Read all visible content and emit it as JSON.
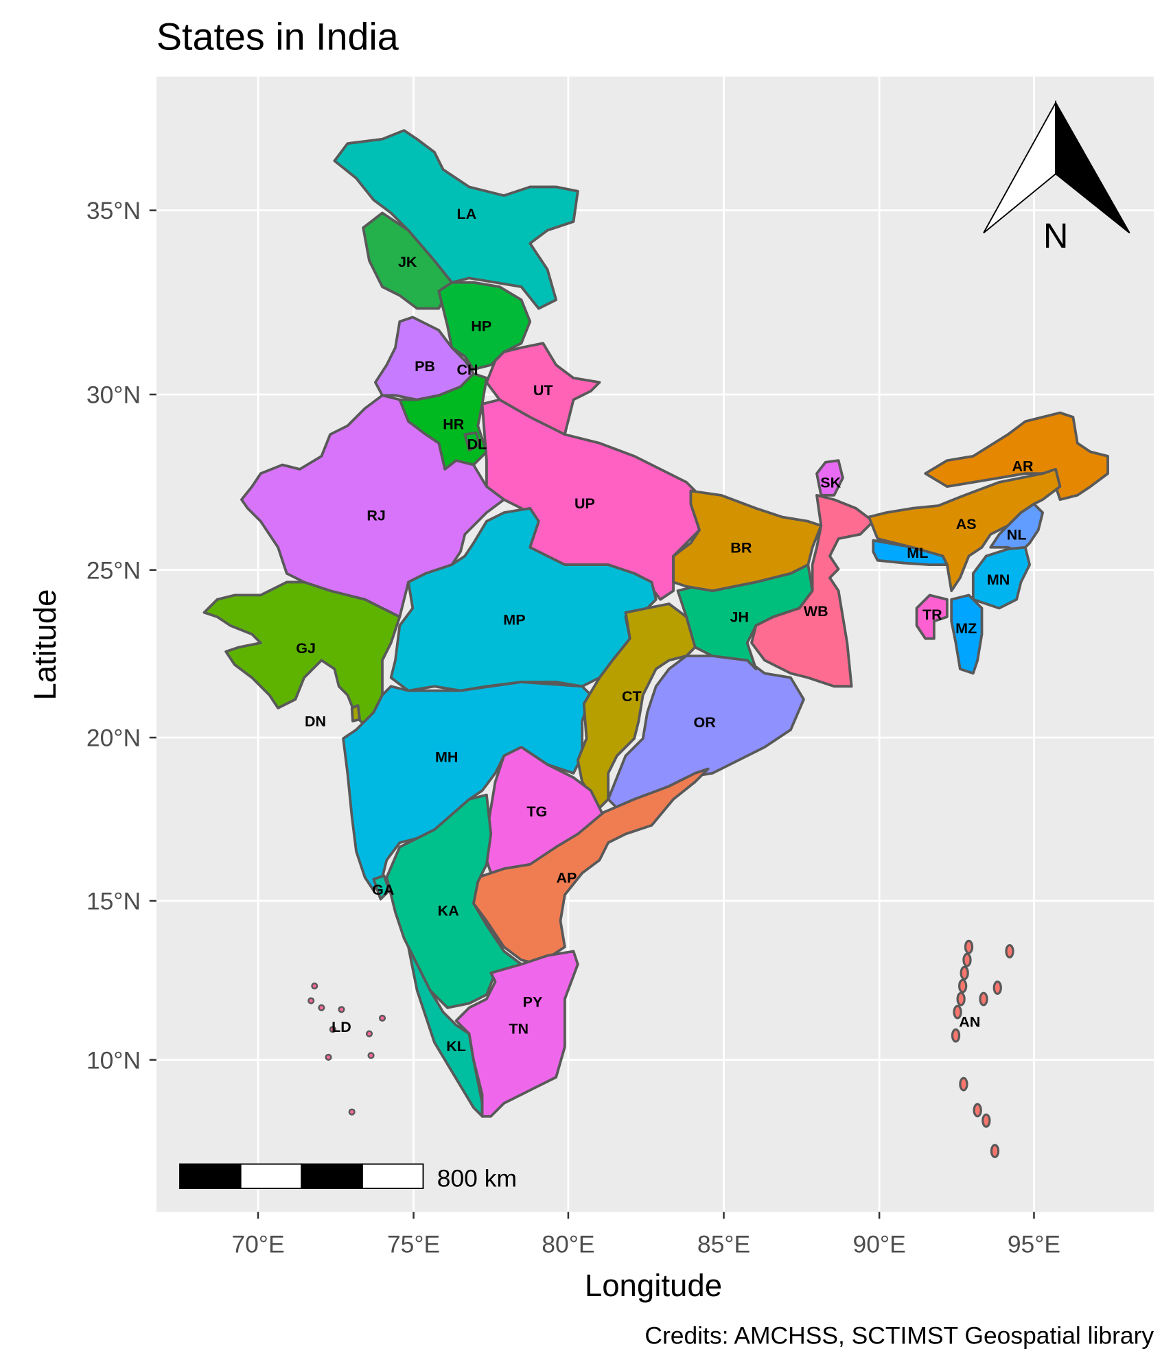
{
  "title": "States in India",
  "axes": {
    "xlabel": "Longitude",
    "ylabel": "Latitude",
    "x_ticks": [
      "70°E",
      "75°E",
      "80°E",
      "85°E",
      "90°E",
      "95°E"
    ],
    "y_ticks": [
      "35°N",
      "30°N",
      "25°N",
      "20°N",
      "15°N",
      "10°N"
    ]
  },
  "scale_bar": {
    "label": "800 km"
  },
  "north_arrow": {
    "label": "N"
  },
  "credits": "Credits: AMCHSS, SCTIMST Geospatial library",
  "colors": {
    "panel": "#EBEBEB",
    "grid": "#FFFFFF",
    "outline": "#595959"
  },
  "states": [
    {
      "code": "LA",
      "color": "#00BFB4"
    },
    {
      "code": "JK",
      "color": "#24B04A"
    },
    {
      "code": "HP",
      "color": "#00BA38"
    },
    {
      "code": "PB",
      "color": "#C77CFF"
    },
    {
      "code": "CH",
      "color": "#00B937"
    },
    {
      "code": "HR",
      "color": "#00B81F"
    },
    {
      "code": "DL",
      "color": "#00B928"
    },
    {
      "code": "UT",
      "color": "#FF63B6"
    },
    {
      "code": "UP",
      "color": "#FF61C3"
    },
    {
      "code": "RJ",
      "color": "#D874FA"
    },
    {
      "code": "GJ",
      "color": "#5EB300"
    },
    {
      "code": "MP",
      "color": "#00BCD6"
    },
    {
      "code": "MH",
      "color": "#00B9E3"
    },
    {
      "code": "CT",
      "color": "#B79F00"
    },
    {
      "code": "OR",
      "color": "#8F91FF"
    },
    {
      "code": "JH",
      "color": "#00BF7D"
    },
    {
      "code": "BR",
      "color": "#D39200"
    },
    {
      "code": "WB",
      "color": "#FF6C91"
    },
    {
      "code": "SK",
      "color": "#E76BF3"
    },
    {
      "code": "AR",
      "color": "#E58700"
    },
    {
      "code": "AS",
      "color": "#DB8E00"
    },
    {
      "code": "NL",
      "color": "#619CFF"
    },
    {
      "code": "ML",
      "color": "#00A9FF"
    },
    {
      "code": "MN",
      "color": "#00B4F0"
    },
    {
      "code": "MZ",
      "color": "#00A5FF"
    },
    {
      "code": "TR",
      "color": "#FD61D1"
    },
    {
      "code": "TG",
      "color": "#F564E3"
    },
    {
      "code": "AP",
      "color": "#F07D52"
    },
    {
      "code": "KA",
      "color": "#00C08B"
    },
    {
      "code": "GA",
      "color": "#00C1A3"
    },
    {
      "code": "KL",
      "color": "#00BFA0"
    },
    {
      "code": "TN",
      "color": "#EF67EB"
    },
    {
      "code": "PY",
      "color": "#F166E8"
    },
    {
      "code": "DN",
      "color": "#A3A500"
    },
    {
      "code": "LD",
      "color": "#FF6A98"
    },
    {
      "code": "AN",
      "color": "#F8766D"
    }
  ]
}
